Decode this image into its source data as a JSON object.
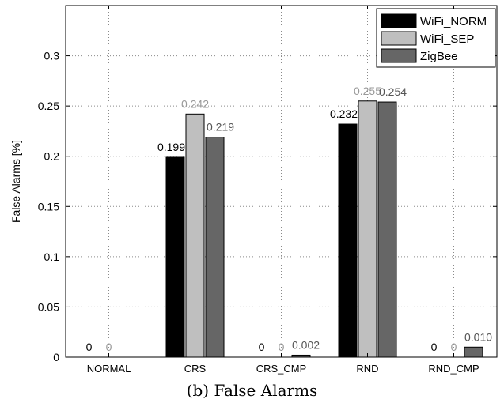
{
  "caption": "(b) False Alarms",
  "chart_data": {
    "type": "bar",
    "title": "",
    "xlabel": "",
    "ylabel": "False Alarms [%]",
    "ylim": [
      0,
      0.35
    ],
    "yticks": [
      0,
      0.05,
      0.1,
      0.15,
      0.2,
      0.25,
      0.3
    ],
    "ytick_labels": [
      "0",
      "0.05",
      "0.1",
      "0.15",
      "0.2",
      "0.25",
      "0.3"
    ],
    "grid": true,
    "legend_position": "top-right",
    "categories": [
      "NORMAL",
      "CRS",
      "CRS_CMP",
      "RND",
      "RND_CMP"
    ],
    "series": [
      {
        "name": "WiFi_NORM",
        "color": "#000000",
        "label_color": "#000000",
        "values": [
          0,
          0.199,
          0,
          0.232,
          0
        ],
        "labels": [
          "0",
          "0.199",
          "0",
          "0.232",
          "0"
        ]
      },
      {
        "name": "WiFi_SEP",
        "color": "#bfbfbf",
        "label_color": "#999999",
        "values": [
          0,
          0.242,
          0,
          0.255,
          0
        ],
        "labels": [
          "0",
          "0.242",
          "0",
          "0.255",
          "0"
        ]
      },
      {
        "name": "ZigBee",
        "color": "#666666",
        "label_color": "#555555",
        "values": [
          0,
          0.219,
          0.002,
          0.254,
          0.01
        ],
        "labels": [
          "",
          "0.219",
          "0.002",
          "0.254",
          "0.010"
        ]
      }
    ]
  }
}
